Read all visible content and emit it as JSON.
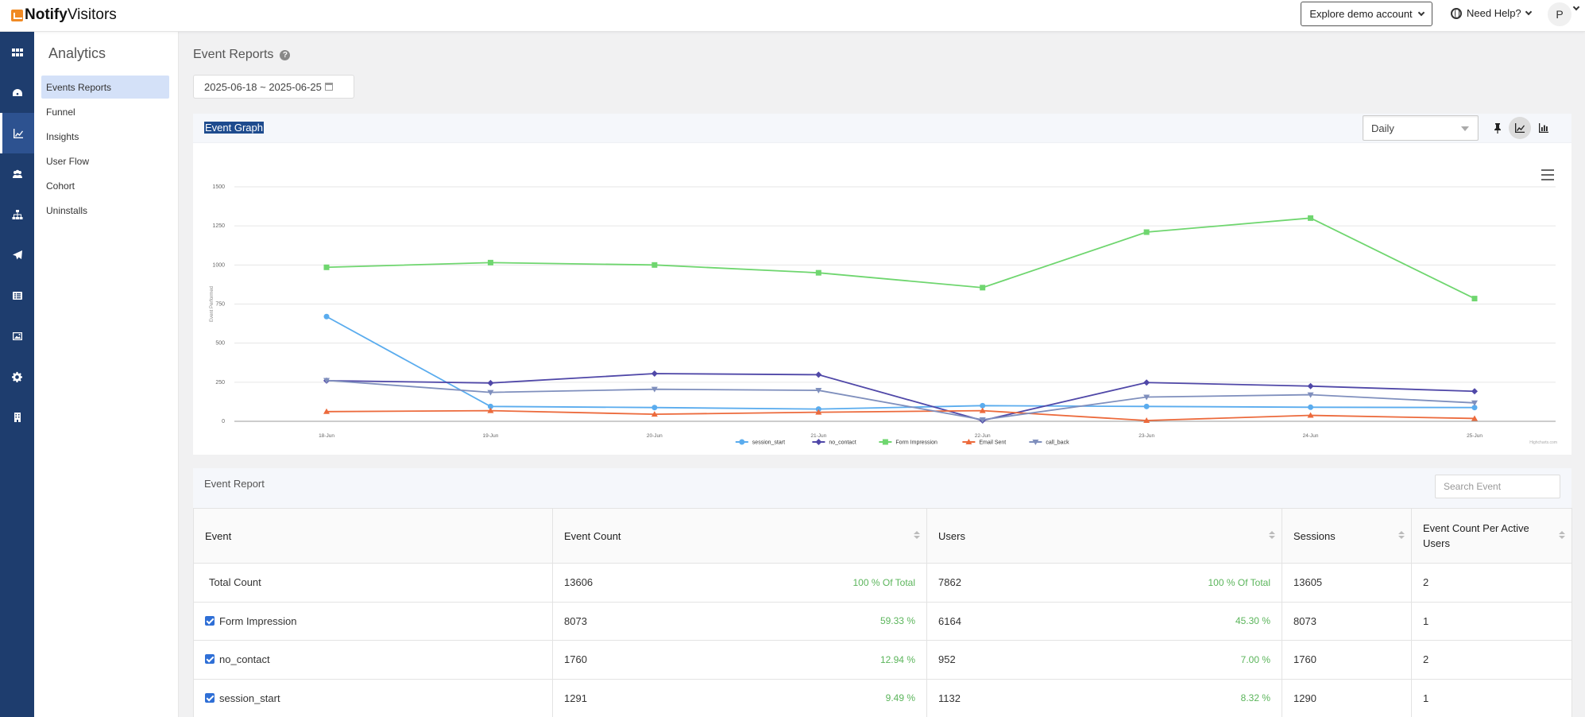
{
  "brand": {
    "bold": "Notify",
    "light": "Visitors"
  },
  "topbar": {
    "explore_label": "Explore demo account",
    "help_label": "Need Help?",
    "avatar_initial": "P"
  },
  "rail": [
    {
      "icon": "apps-grid-icon"
    },
    {
      "icon": "dashboard-gauge-icon"
    },
    {
      "icon": "analytics-chart-icon",
      "active": true
    },
    {
      "icon": "users-group-icon"
    },
    {
      "icon": "hierarchy-icon"
    },
    {
      "icon": "send-paper-plane-icon"
    },
    {
      "icon": "list-icon"
    },
    {
      "icon": "image-icon"
    },
    {
      "icon": "gear-icon"
    },
    {
      "icon": "building-icon"
    }
  ],
  "submenu": {
    "title": "Analytics",
    "items": [
      {
        "label": "Events Reports",
        "active": true
      },
      {
        "label": "Funnel"
      },
      {
        "label": "Insights"
      },
      {
        "label": "User Flow"
      },
      {
        "label": "Cohort"
      },
      {
        "label": "Uninstalls"
      }
    ]
  },
  "page": {
    "title": "Event Reports",
    "date_range": "2025-06-18 ~ 2025-06-25"
  },
  "graph": {
    "title": "Event Graph",
    "interval": "Daily",
    "credits": "Highcharts.com"
  },
  "chart_data": {
    "type": "line",
    "ylabel": "Event Performed",
    "xlabel": "",
    "ylim": [
      0,
      1500
    ],
    "yticks": [
      0,
      250,
      500,
      750,
      1000,
      1250,
      1500
    ],
    "categories": [
      "18-Jun",
      "19-Jun",
      "20-Jun",
      "21-Jun",
      "22-Jun",
      "23-Jun",
      "24-Jun",
      "25-Jun"
    ],
    "grid": true,
    "legend": "bottom-center",
    "series": [
      {
        "name": "session_start",
        "color": "#5aacee",
        "marker": "circle",
        "values": [
          670,
          95,
          88,
          78,
          100,
          95,
          90,
          88
        ]
      },
      {
        "name": "no_contact",
        "color": "#5048a8",
        "marker": "diamond",
        "values": [
          260,
          245,
          305,
          298,
          5,
          248,
          225,
          192
        ]
      },
      {
        "name": "Form Impression",
        "color": "#6fd66f",
        "marker": "square",
        "values": [
          985,
          1015,
          1000,
          950,
          855,
          1210,
          1300,
          785
        ]
      },
      {
        "name": "Email Sent",
        "color": "#ec6a3c",
        "marker": "triangle",
        "values": [
          62,
          68,
          45,
          58,
          68,
          5,
          38,
          18
        ]
      },
      {
        "name": "call_back",
        "color": "#7f8fbd",
        "marker": "triangle-down",
        "values": [
          262,
          185,
          205,
          198,
          10,
          155,
          170,
          118
        ]
      }
    ]
  },
  "report": {
    "title": "Event Report",
    "search_placeholder": "Search Event",
    "columns": [
      "Event",
      "Event Count",
      "Users",
      "Sessions",
      "Event Count Per Active Users"
    ],
    "rows": [
      {
        "event": "Total Count",
        "checkbox": false,
        "count": "13606",
        "count_pct": "100 % Of Total",
        "users": "7862",
        "users_pct": "100 % Of Total",
        "sessions": "13605",
        "per_user": "2"
      },
      {
        "event": "Form Impression",
        "checkbox": true,
        "count": "8073",
        "count_pct": "59.33 %",
        "users": "6164",
        "users_pct": "45.30 %",
        "sessions": "8073",
        "per_user": "1"
      },
      {
        "event": "no_contact",
        "checkbox": true,
        "count": "1760",
        "count_pct": "12.94 %",
        "users": "952",
        "users_pct": "7.00 %",
        "sessions": "1760",
        "per_user": "2"
      },
      {
        "event": "session_start",
        "checkbox": true,
        "count": "1291",
        "count_pct": "9.49 %",
        "users": "1132",
        "users_pct": "8.32 %",
        "sessions": "1290",
        "per_user": "1"
      }
    ]
  }
}
